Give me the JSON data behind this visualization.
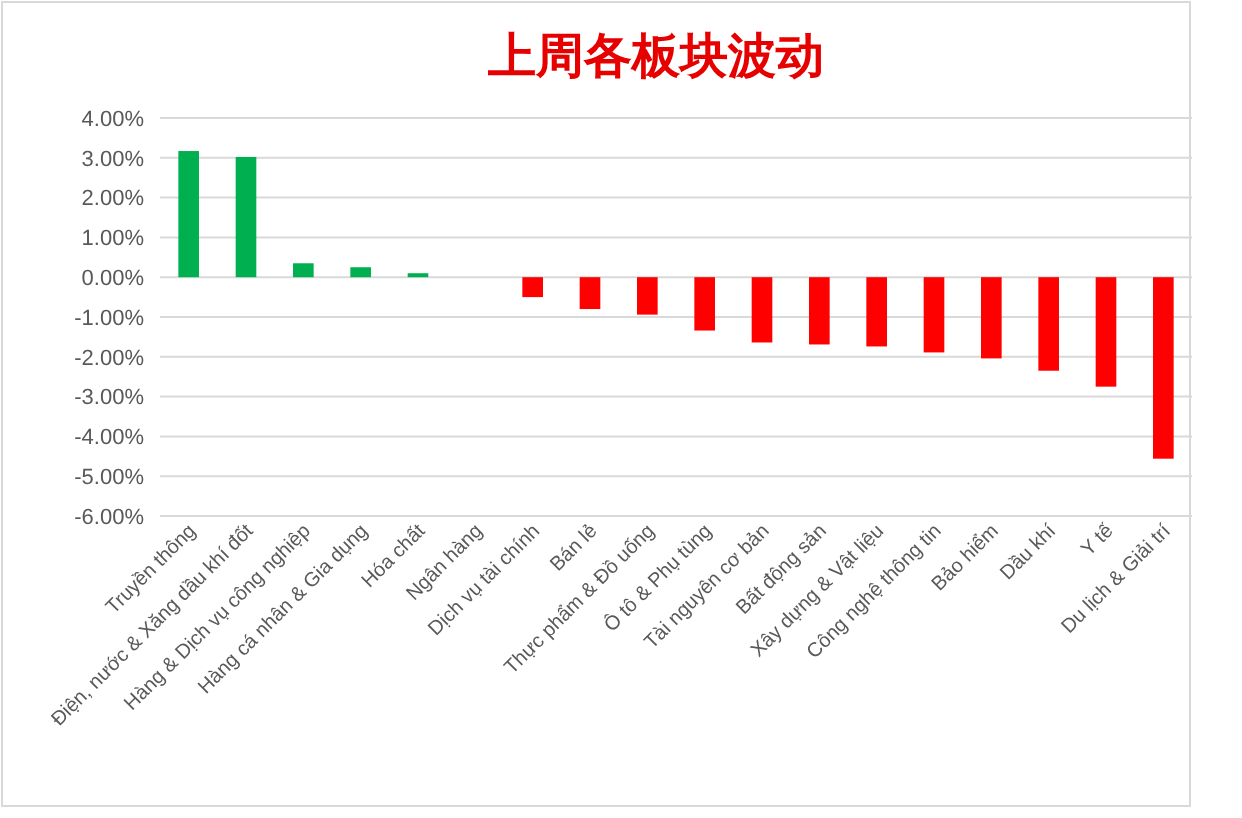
{
  "chart_data": {
    "type": "bar",
    "title": "上周各板块波动",
    "categories": [
      "Truyền thông",
      "Điện, nước & Xăng dầu khí đốt",
      "Hàng & Dịch vụ công nghiệp",
      "Hàng cá nhân & Gia dụng",
      "Hóa chất",
      "Ngân hàng",
      "Dịch vụ tài chính",
      "Bán lẻ",
      "Thực phẩm & Đồ uống",
      "Ô tô & Phụ tùng",
      "Tài nguyên cơ bản",
      "Bất động sản",
      "Xây dựng & Vật liệu",
      "Công nghệ thông tin",
      "Bảo hiểm",
      "Dầu khí",
      "Y tế",
      "Du lịch & Giải trí"
    ],
    "values": [
      3.17,
      3.02,
      0.35,
      0.25,
      0.1,
      0,
      -0.5,
      -0.8,
      -0.94,
      -1.34,
      -1.64,
      -1.69,
      -1.74,
      -1.89,
      -2.04,
      -2.35,
      -2.75,
      -4.56
    ],
    "colors": [
      "#00b050",
      "#00b050",
      "#00b050",
      "#00b050",
      "#00b050",
      "#00b050",
      "#ff0000",
      "#ff0000",
      "#ff0000",
      "#ff0000",
      "#ff0000",
      "#ff0000",
      "#ff0000",
      "#ff0000",
      "#ff0000",
      "#ff0000",
      "#ff0000",
      "#ff0000"
    ],
    "ylim": [
      -6,
      4
    ],
    "yticks": [
      {
        "value": 4,
        "label": "4.00%"
      },
      {
        "value": 3,
        "label": "3.00%"
      },
      {
        "value": 2,
        "label": "2.00%"
      },
      {
        "value": 1,
        "label": "1.00%"
      },
      {
        "value": 0,
        "label": "0.00%"
      },
      {
        "value": -1,
        "label": "-1.00%"
      },
      {
        "value": -2,
        "label": "-2.00%"
      },
      {
        "value": -3,
        "label": "-3.00%"
      },
      {
        "value": -4,
        "label": "-4.00%"
      },
      {
        "value": -5,
        "label": "-5.00%"
      },
      {
        "value": -6,
        "label": "-6.00%"
      }
    ],
    "grid": "y"
  }
}
